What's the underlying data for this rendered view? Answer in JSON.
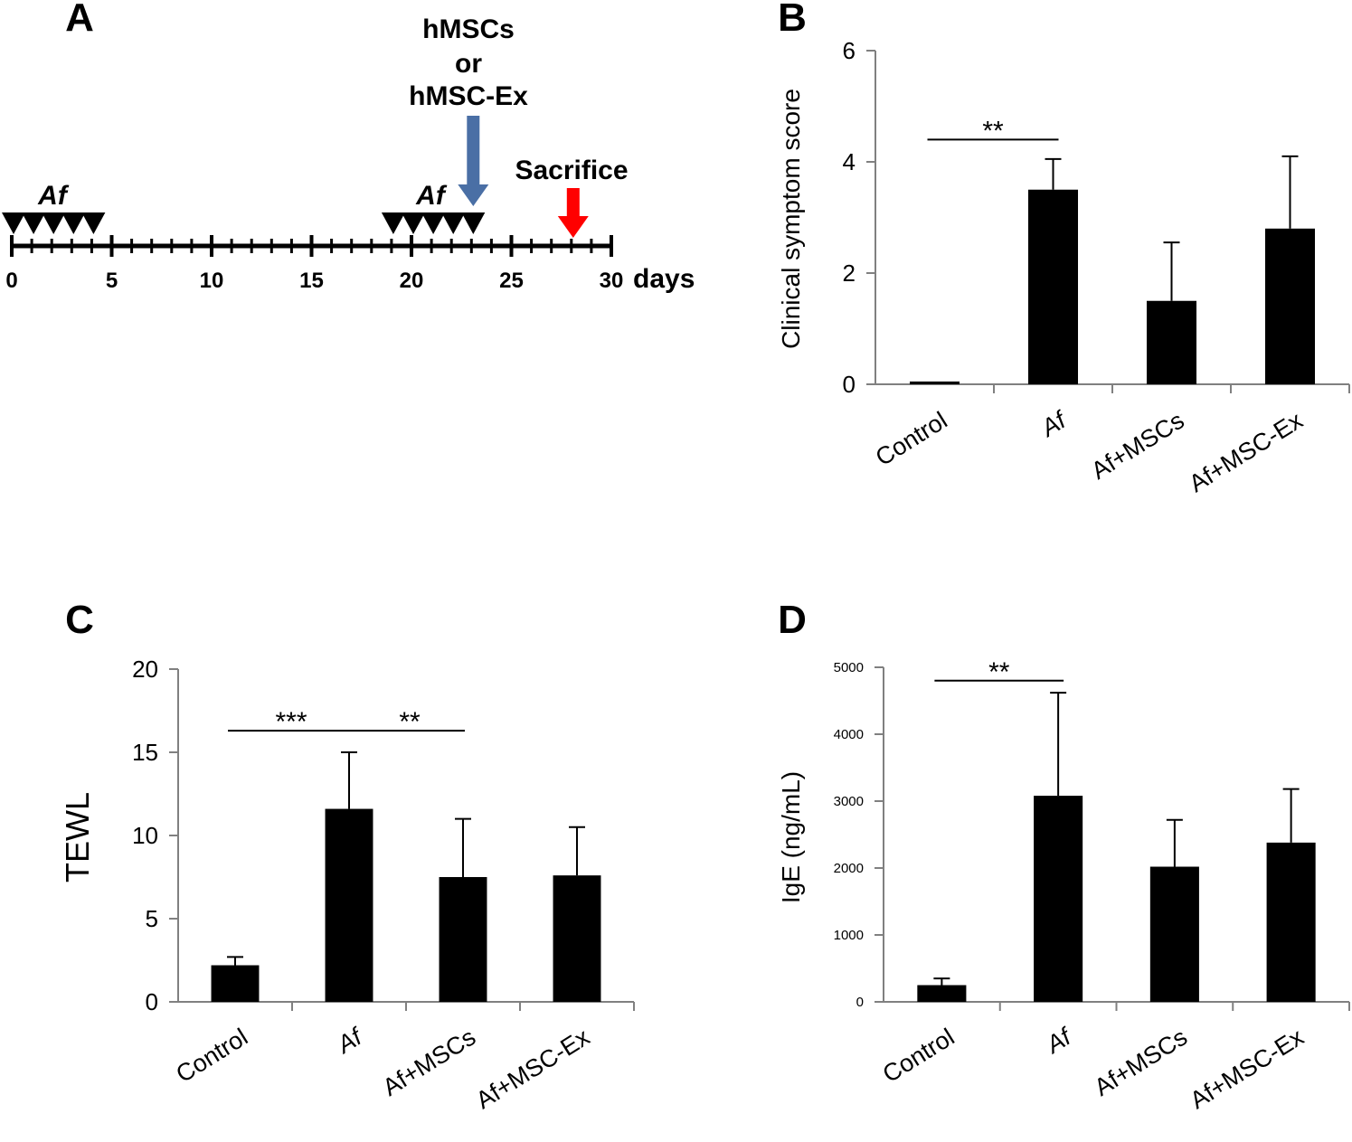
{
  "panel_labels": {
    "a": "A",
    "b": "B",
    "c": "C",
    "d": "D"
  },
  "timeline": {
    "unit": "days",
    "ticks": [
      "0",
      "5",
      "10",
      "15",
      "20",
      "25",
      "30"
    ],
    "range": [
      0,
      30
    ],
    "first_injection_label": "Af",
    "first_injection_days": [
      0,
      1,
      2,
      3,
      4
    ],
    "second_injection_label": "Af",
    "second_injection_days": [
      19,
      20,
      21,
      22,
      23
    ],
    "treatment_label": [
      "hMSCs",
      "or",
      "hMSC-Ex"
    ],
    "treatment_day": 23,
    "sacrifice_label": "Sacrifice",
    "sacrifice_day": 28,
    "treatment_color": "#4a6fa5",
    "sacrifice_color": "#ff0000"
  },
  "chart_data": [
    {
      "id": "B",
      "type": "bar",
      "title": "",
      "xlabel": "",
      "ylabel": "Clinical symptom score",
      "ylim": [
        0,
        6
      ],
      "yticks": [
        "0",
        "2",
        "4",
        "6"
      ],
      "categories": [
        "Control",
        "Af",
        "Af+MSCs",
        "Af+MSC-Ex"
      ],
      "values": [
        0.05,
        3.5,
        1.5,
        2.8
      ],
      "errors": [
        0.0,
        0.55,
        1.05,
        1.3
      ],
      "significance": [
        {
          "from": 0,
          "to": 1,
          "label": "**",
          "y": 4.4
        }
      ]
    },
    {
      "id": "C",
      "type": "bar",
      "title": "",
      "xlabel": "",
      "ylabel": "TEWL",
      "ylim": [
        0,
        20
      ],
      "yticks": [
        "0",
        "5",
        "10",
        "15",
        "20"
      ],
      "categories": [
        "Control",
        "Af",
        "Af+MSCs",
        "Af+MSC-Ex"
      ],
      "values": [
        2.2,
        11.6,
        7.5,
        7.6
      ],
      "errors": [
        0.5,
        3.4,
        3.5,
        2.9
      ],
      "significance": [
        {
          "from": 0,
          "to": 1,
          "label": "***",
          "y": 16.3
        },
        {
          "from": 1,
          "to": 2,
          "label": "**",
          "y": 16.3
        }
      ]
    },
    {
      "id": "D",
      "type": "bar",
      "title": "",
      "xlabel": "",
      "ylabel": "IgE  (ng/mL)",
      "ylim": [
        0,
        5000
      ],
      "yticks": [
        "0",
        "1000",
        "2000",
        "3000",
        "4000",
        "5000"
      ],
      "categories": [
        "Control",
        "Af",
        "Af+MSCs",
        "Af+MSC-Ex"
      ],
      "values": [
        250,
        3080,
        2020,
        2380
      ],
      "errors": [
        100,
        1540,
        700,
        800
      ],
      "significance": [
        {
          "from": 0,
          "to": 1,
          "label": "**",
          "y": 4800
        }
      ]
    }
  ]
}
